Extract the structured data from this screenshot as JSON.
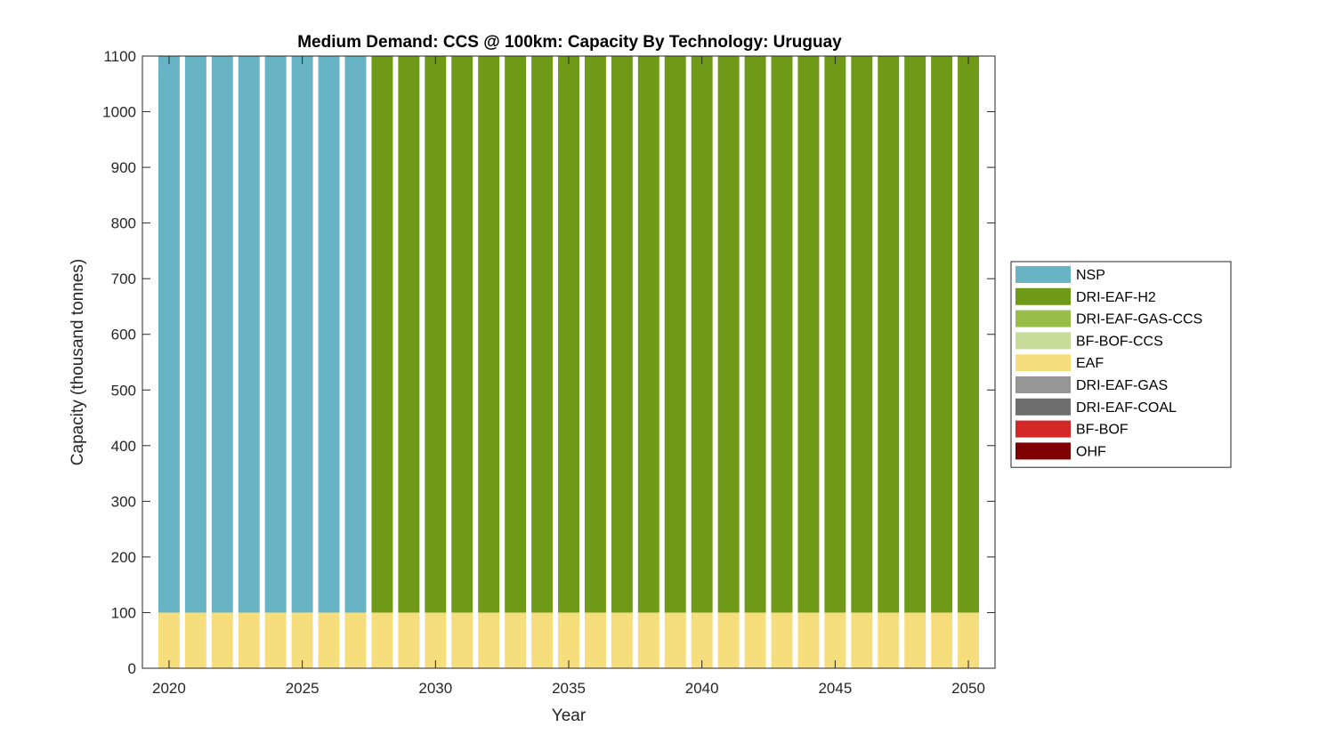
{
  "chart_data": {
    "type": "bar",
    "stacked": true,
    "title": "Medium Demand: CCS @ 100km: Capacity By Technology: Uruguay",
    "xlabel": "Year",
    "ylabel": "Capacity (thousand tonnes)",
    "xlim": [
      2019,
      2051
    ],
    "ylim": [
      0,
      1100
    ],
    "xticks": [
      2020,
      2025,
      2030,
      2035,
      2040,
      2045,
      2050
    ],
    "yticks": [
      0,
      100,
      200,
      300,
      400,
      500,
      600,
      700,
      800,
      900,
      1000,
      1100
    ],
    "grid": false,
    "legend_position": "right",
    "x": [
      2020,
      2021,
      2022,
      2023,
      2024,
      2025,
      2026,
      2027,
      2028,
      2029,
      2030,
      2031,
      2032,
      2033,
      2034,
      2035,
      2036,
      2037,
      2038,
      2039,
      2040,
      2041,
      2042,
      2043,
      2044,
      2045,
      2046,
      2047,
      2048,
      2049,
      2050
    ],
    "series": [
      {
        "name": "OHF",
        "color": "#7f0000",
        "values": [
          0,
          0,
          0,
          0,
          0,
          0,
          0,
          0,
          0,
          0,
          0,
          0,
          0,
          0,
          0,
          0,
          0,
          0,
          0,
          0,
          0,
          0,
          0,
          0,
          0,
          0,
          0,
          0,
          0,
          0,
          0
        ]
      },
      {
        "name": "BF-BOF",
        "color": "#d42727",
        "values": [
          0,
          0,
          0,
          0,
          0,
          0,
          0,
          0,
          0,
          0,
          0,
          0,
          0,
          0,
          0,
          0,
          0,
          0,
          0,
          0,
          0,
          0,
          0,
          0,
          0,
          0,
          0,
          0,
          0,
          0,
          0
        ]
      },
      {
        "name": "DRI-EAF-COAL",
        "color": "#6e6e6e",
        "values": [
          0,
          0,
          0,
          0,
          0,
          0,
          0,
          0,
          0,
          0,
          0,
          0,
          0,
          0,
          0,
          0,
          0,
          0,
          0,
          0,
          0,
          0,
          0,
          0,
          0,
          0,
          0,
          0,
          0,
          0,
          0
        ]
      },
      {
        "name": "DRI-EAF-GAS",
        "color": "#969696",
        "values": [
          0,
          0,
          0,
          0,
          0,
          0,
          0,
          0,
          0,
          0,
          0,
          0,
          0,
          0,
          0,
          0,
          0,
          0,
          0,
          0,
          0,
          0,
          0,
          0,
          0,
          0,
          0,
          0,
          0,
          0,
          0
        ]
      },
      {
        "name": "EAF",
        "color": "#f7de7c",
        "values": [
          100,
          100,
          100,
          100,
          100,
          100,
          100,
          100,
          100,
          100,
          100,
          100,
          100,
          100,
          100,
          100,
          100,
          100,
          100,
          100,
          100,
          100,
          100,
          100,
          100,
          100,
          100,
          100,
          100,
          100,
          100
        ]
      },
      {
        "name": "BF-BOF-CCS",
        "color": "#c7dc98",
        "values": [
          0,
          0,
          0,
          0,
          0,
          0,
          0,
          0,
          0,
          0,
          0,
          0,
          0,
          0,
          0,
          0,
          0,
          0,
          0,
          0,
          0,
          0,
          0,
          0,
          0,
          0,
          0,
          0,
          0,
          0,
          0
        ]
      },
      {
        "name": "DRI-EAF-GAS-CCS",
        "color": "#98bd48",
        "values": [
          0,
          0,
          0,
          0,
          0,
          0,
          0,
          0,
          0,
          0,
          0,
          0,
          0,
          0,
          0,
          0,
          0,
          0,
          0,
          0,
          0,
          0,
          0,
          0,
          0,
          0,
          0,
          0,
          0,
          0,
          0
        ]
      },
      {
        "name": "DRI-EAF-H2",
        "color": "#6f9a17",
        "values": [
          0,
          0,
          0,
          0,
          0,
          0,
          0,
          0,
          1000,
          1000,
          1000,
          1000,
          1000,
          1000,
          1000,
          1000,
          1000,
          1000,
          1000,
          1000,
          1000,
          1000,
          1000,
          1000,
          1000,
          1000,
          1000,
          1000,
          1000,
          1000,
          1000
        ]
      },
      {
        "name": "NSP",
        "color": "#68b4c5",
        "values": [
          1000,
          1000,
          1000,
          1000,
          1000,
          1000,
          1000,
          1000,
          0,
          0,
          0,
          0,
          0,
          0,
          0,
          0,
          0,
          0,
          0,
          0,
          0,
          0,
          0,
          0,
          0,
          0,
          0,
          0,
          0,
          0,
          0
        ]
      }
    ],
    "legend_order": [
      "NSP",
      "DRI-EAF-H2",
      "DRI-EAF-GAS-CCS",
      "BF-BOF-CCS",
      "EAF",
      "DRI-EAF-GAS",
      "DRI-EAF-COAL",
      "BF-BOF",
      "OHF"
    ]
  }
}
